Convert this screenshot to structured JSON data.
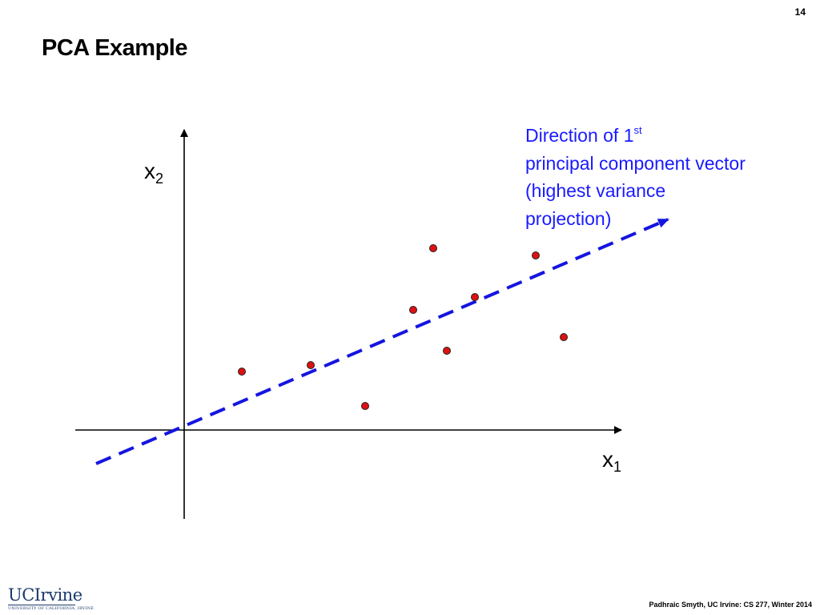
{
  "slide": {
    "page_number": "14",
    "title": "PCA Example",
    "footer": "Padhraic Smyth, UC Irvine: CS 277, Winter 2014",
    "logo": {
      "main": "UCIrvine",
      "sub": "UNIVERSITY OF CALIFORNIA, IRVINE"
    }
  },
  "diagram": {
    "annotation": {
      "line1_prefix": "Direction of 1",
      "line1_sup": "st",
      "line2": "principal component vector",
      "line3": "(highest variance",
      "line4": "projection)"
    },
    "x_axis_label": {
      "base": "x",
      "sub": "1"
    },
    "y_axis_label": {
      "base": "x",
      "sub": "2"
    },
    "colors": {
      "points": "#dd1111",
      "direction_line": "#1515e0",
      "axes": "#000000"
    },
    "point_count": 10
  }
}
